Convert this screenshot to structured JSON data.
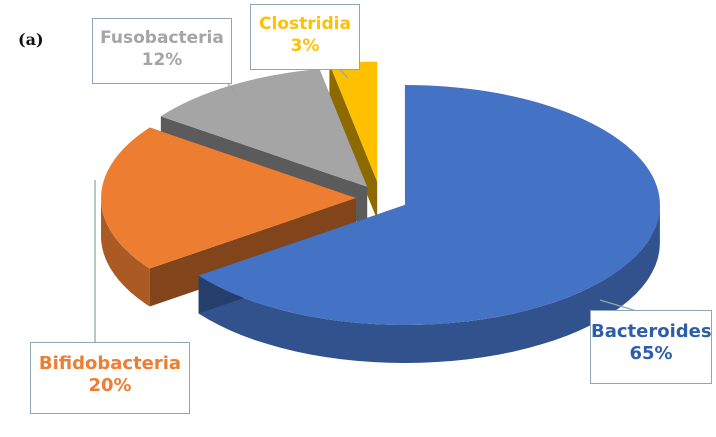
{
  "panel_label": "(a)",
  "chart_data": {
    "type": "pie",
    "categories": [
      "Bacteroides",
      "Bifidobacteria",
      "Fusobacteria",
      "Clostridia"
    ],
    "values": [
      65,
      20,
      12,
      3
    ],
    "value_labels": [
      "65%",
      "20%",
      "12%",
      "3%"
    ],
    "colors": [
      "#4472c4",
      "#ed7d31",
      "#a5a5a5",
      "#ffc000"
    ],
    "label_text_colors": [
      "#2f5ea8",
      "#ed7d31",
      "#a5a5a5",
      "#ffc000"
    ],
    "exploded": true,
    "three_d": true,
    "legend": "none",
    "data_labels": "callout-boxes"
  }
}
